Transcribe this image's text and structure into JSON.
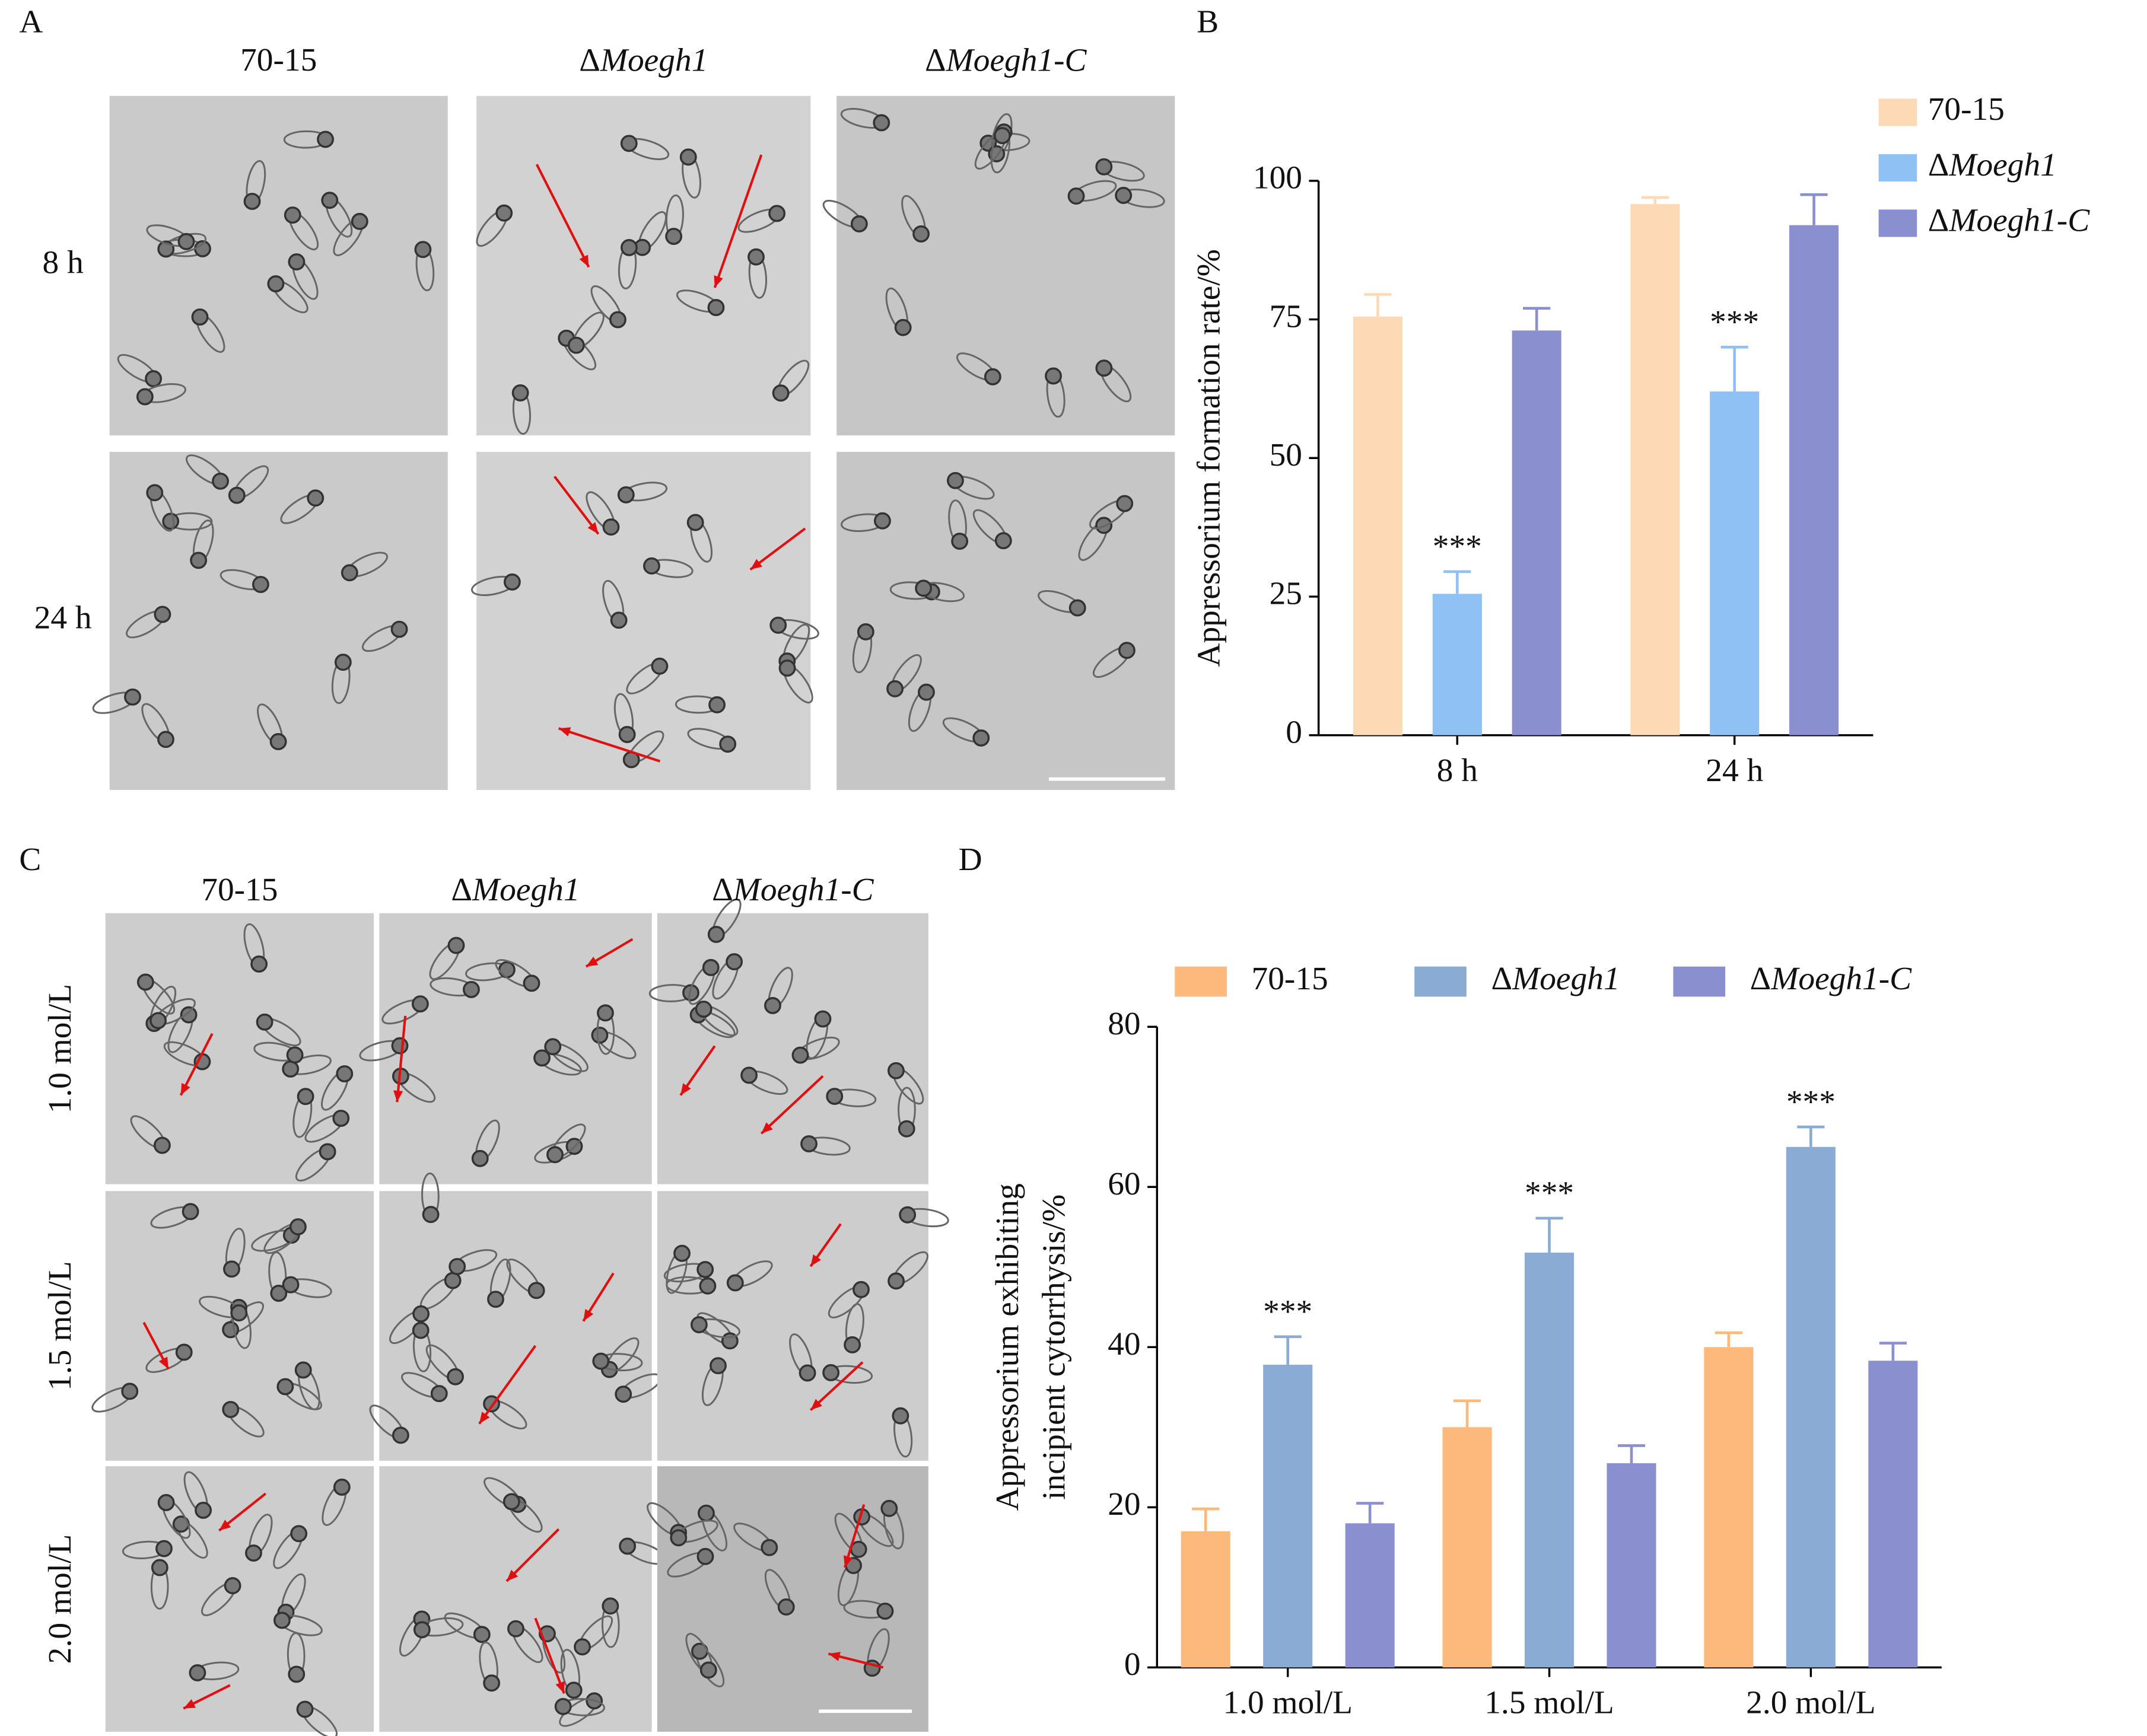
{
  "figure": {
    "panel_labels": [
      "A",
      "B",
      "C",
      "D"
    ],
    "a_columns": [
      "70-15",
      "ΔMoegh1",
      "ΔMoegh1-C"
    ],
    "a_rows": [
      "8 h",
      "24 h"
    ],
    "c_columns": [
      "70-15",
      "ΔMoegh1",
      "ΔMoegh1-C"
    ],
    "c_rows": [
      "1.0 mol/L",
      "1.5 mol/L",
      "2.0 mol/L"
    ]
  },
  "chart_data": [
    {
      "type": "bar",
      "ylabel": "Appressorium formation rate/%",
      "categories": [
        "8 h",
        "24 h"
      ],
      "ylim": [
        0,
        100
      ],
      "yticks": [
        0,
        25,
        50,
        75,
        100
      ],
      "legend": "upper right",
      "series": [
        {
          "name": "70-15",
          "color": "#fdd9b5",
          "values": [
            75.5,
            95.8
          ],
          "errors": [
            4,
            1.2
          ]
        },
        {
          "name": "ΔMoegh1",
          "color": "#8fc1f5",
          "values": [
            25.5,
            62
          ],
          "errors": [
            4,
            8
          ],
          "annotations": [
            "***",
            "***"
          ]
        },
        {
          "name": "ΔMoegh1-C",
          "color": "#8a8fd0",
          "values": [
            73,
            92
          ],
          "errors": [
            4,
            5.5
          ]
        }
      ]
    },
    {
      "type": "bar",
      "ylabel": [
        "Appressorium exhibiting",
        "incipient cytorrhysis/%"
      ],
      "categories": [
        "1.0 mol/L",
        "1.5 mol/L",
        "2.0 mol/L"
      ],
      "ylim": [
        0,
        80
      ],
      "yticks": [
        0,
        20,
        40,
        60,
        80
      ],
      "legend": "top",
      "series": [
        {
          "name": "70-15",
          "color": "#fdb97b",
          "values": [
            17,
            30,
            40
          ],
          "errors": [
            2.8,
            3.3,
            1.8
          ]
        },
        {
          "name": "ΔMoegh1",
          "color": "#8aabd4",
          "values": [
            37.8,
            51.8,
            65
          ],
          "errors": [
            3.5,
            4.3,
            2.5
          ],
          "annotations": [
            "***",
            "***",
            "***"
          ]
        },
        {
          "name": "ΔMoegh1-C",
          "color": "#8a8fd0",
          "values": [
            18,
            25.5,
            38.3
          ],
          "errors": [
            2.5,
            2.2,
            2.2
          ]
        }
      ]
    }
  ]
}
